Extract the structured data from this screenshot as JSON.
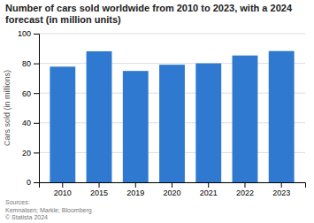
{
  "chart_data": {
    "type": "bar",
    "title": "Number of cars sold worldwide from 2010 to 2023, with a 2024 forecast (in million units)",
    "ylabel": "Cars sold (in millions)",
    "categories": [
      "2010",
      "2015",
      "2019",
      "2020",
      "2021",
      "2022",
      "2023"
    ],
    "values": [
      77.8,
      88.1,
      74.9,
      79.1,
      80.0,
      85.3,
      88.3
    ],
    "color": "#2f79d0",
    "ylim": [
      0,
      100
    ],
    "yticks": [
      0,
      20,
      40,
      60,
      80,
      100
    ],
    "grid": true,
    "source": "Sources:\nKemnalsen; Markle; Bloomberg\n© Statista 2024"
  }
}
